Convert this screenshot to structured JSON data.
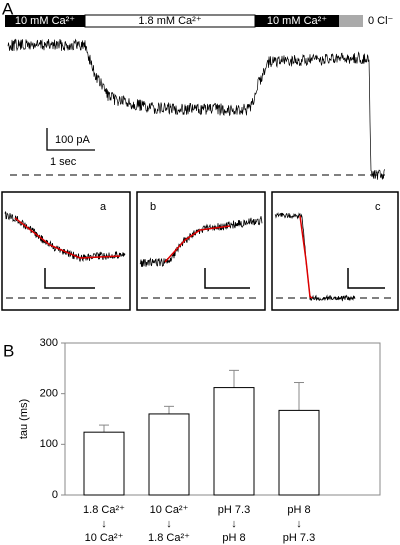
{
  "panel_a": {
    "label": "A",
    "solution_bar": [
      "10 mM Ca²⁺",
      "1.8 mM Ca²⁺",
      "10 mM Ca²⁺",
      "0 Cl⁻"
    ],
    "scale_current": "100 pA",
    "scale_time": "1 sec",
    "insets": [
      "a",
      "b",
      "c"
    ]
  },
  "chart_data": {
    "type": "bar",
    "label": "B",
    "ylabel": "tau (ms)",
    "categories": [
      [
        "1.8 Ca²⁺",
        "↓",
        "10 Ca²⁺"
      ],
      [
        "10 Ca²⁺",
        "↓",
        "1.8 Ca²⁺"
      ],
      [
        "pH 7.3",
        "↓",
        "pH 8"
      ],
      [
        "pH 8",
        "↓",
        "pH 7.3"
      ]
    ],
    "values": [
      124,
      160,
      212,
      167
    ],
    "errors": [
      14,
      15,
      34,
      55
    ],
    "color": "#ffffff",
    "ylim": [
      0,
      300
    ],
    "yticks": [
      0,
      100,
      200,
      300
    ]
  }
}
